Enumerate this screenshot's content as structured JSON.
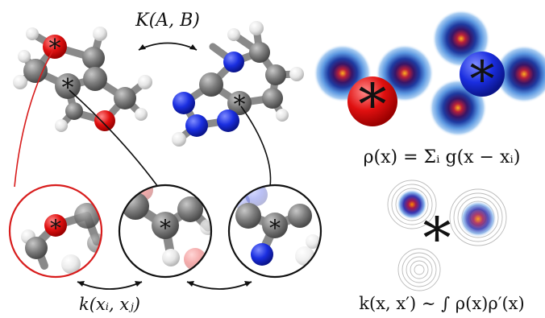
{
  "labels": {
    "global_kernel": "K(A, B)",
    "local_kernel": "k(xᵢ, xⱼ)",
    "density": "ρ(x) = Σᵢ g(x − xᵢ)",
    "overlap_kernel": "k(x, x′) ∼ ∫ ρ(x)ρ′(x)",
    "center_marker": "*"
  },
  "colors": {
    "carbon": "#7d7d7d",
    "hydrogen": "#e8e8e8",
    "oxygen": "#e01010",
    "nitrogen": "#1a2ee0",
    "bond": "#9a9a9a",
    "red_outline": "#d81c1c",
    "black_outline": "#111111",
    "density_glow": "#6fa8e8",
    "density_core": "#ff9a1a"
  }
}
